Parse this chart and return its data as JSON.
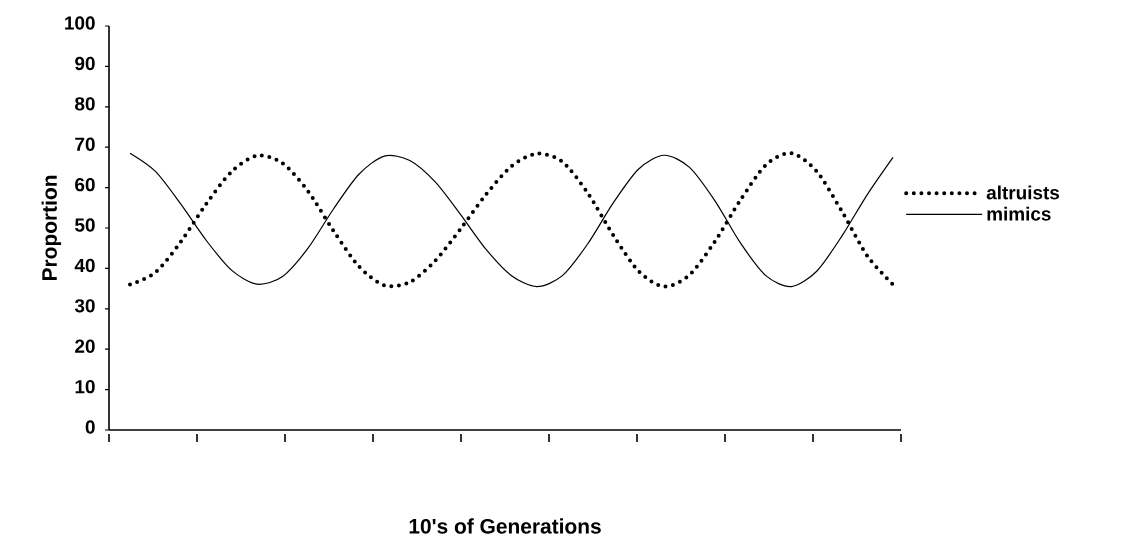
{
  "chart_data": {
    "type": "line",
    "xlabel": "10's of Generations",
    "ylabel": "Proportion",
    "categories": [
      null,
      null,
      null,
      null,
      null,
      null,
      null,
      null,
      null,
      null,
      null,
      null,
      null,
      null,
      null,
      null,
      null,
      null,
      null,
      null,
      null,
      null,
      null,
      null,
      null,
      null,
      null,
      null,
      null,
      null,
      null
    ],
    "ylim": [
      0,
      100
    ],
    "yticks": [
      0,
      10,
      20,
      30,
      40,
      50,
      60,
      70,
      80,
      90,
      100
    ],
    "grid": false,
    "legend": "right",
    "marker": "none",
    "series": [
      {
        "name": "altruists",
        "color": "#000000",
        "line_style": "dotted",
        "values": [
          36.0,
          39.0,
          46.6,
          56.0,
          64.0,
          67.9,
          66.0,
          59.1,
          49.3,
          40.5,
          35.8,
          36.6,
          41.9,
          49.8,
          58.3,
          65.3,
          68.4,
          66.4,
          58.6,
          48.2,
          39.3,
          35.5,
          38.4,
          46.7,
          56.9,
          65.6,
          68.5,
          64.0,
          54.0,
          43.0,
          36.0
        ]
      },
      {
        "name": "mimics",
        "color": "#000000",
        "line_style": "solid",
        "values": [
          68.5,
          64.0,
          55.9,
          46.9,
          39.5,
          36.1,
          38.0,
          45.0,
          54.7,
          63.3,
          67.8,
          66.7,
          61.4,
          53.3,
          44.7,
          38.2,
          35.5,
          38.2,
          46.1,
          56.2,
          64.6,
          68.0,
          65.0,
          56.7,
          46.3,
          38.2,
          35.5,
          39.3,
          48.1,
          58.4,
          67.5
        ]
      }
    ]
  }
}
